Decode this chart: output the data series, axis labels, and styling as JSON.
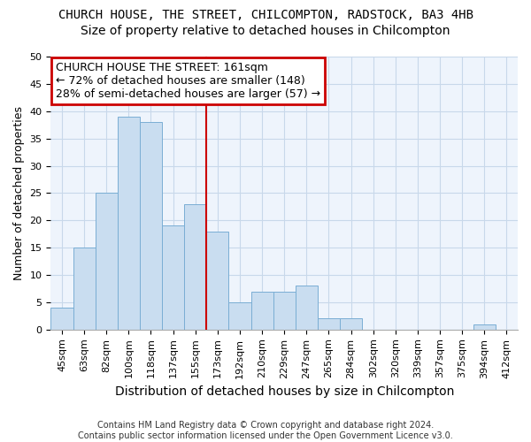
{
  "title": "CHURCH HOUSE, THE STREET, CHILCOMPTON, RADSTOCK, BA3 4HB",
  "subtitle": "Size of property relative to detached houses in Chilcompton",
  "xlabel": "Distribution of detached houses by size in Chilcompton",
  "ylabel": "Number of detached properties",
  "bar_color": "#c9ddf0",
  "bar_edge_color": "#7aaed4",
  "vline_color": "#cc0000",
  "annotation_box_color": "#cc0000",
  "annotation_text": "CHURCH HOUSE THE STREET: 161sqm\n← 72% of detached houses are smaller (148)\n28% of semi-detached houses are larger (57) →",
  "vline_x": 6.5,
  "categories": [
    "45sqm",
    "63sqm",
    "82sqm",
    "100sqm",
    "118sqm",
    "137sqm",
    "155sqm",
    "173sqm",
    "192sqm",
    "210sqm",
    "229sqm",
    "247sqm",
    "265sqm",
    "284sqm",
    "302sqm",
    "320sqm",
    "339sqm",
    "357sqm",
    "375sqm",
    "394sqm",
    "412sqm"
  ],
  "values": [
    4,
    15,
    25,
    39,
    38,
    19,
    23,
    18,
    5,
    7,
    7,
    8,
    2,
    2,
    0,
    0,
    0,
    0,
    0,
    1,
    0
  ],
  "ylim": [
    0,
    50
  ],
  "yticks": [
    0,
    5,
    10,
    15,
    20,
    25,
    30,
    35,
    40,
    45,
    50
  ],
  "footer": "Contains HM Land Registry data © Crown copyright and database right 2024.\nContains public sector information licensed under the Open Government Licence v3.0.",
  "bg_color": "#ffffff",
  "plot_bg_color": "#eef4fc",
  "grid_color": "#c8d8ea",
  "title_fontsize": 10,
  "subtitle_fontsize": 10,
  "xlabel_fontsize": 10,
  "ylabel_fontsize": 9,
  "tick_fontsize": 8,
  "ann_fontsize": 9,
  "footer_fontsize": 7
}
